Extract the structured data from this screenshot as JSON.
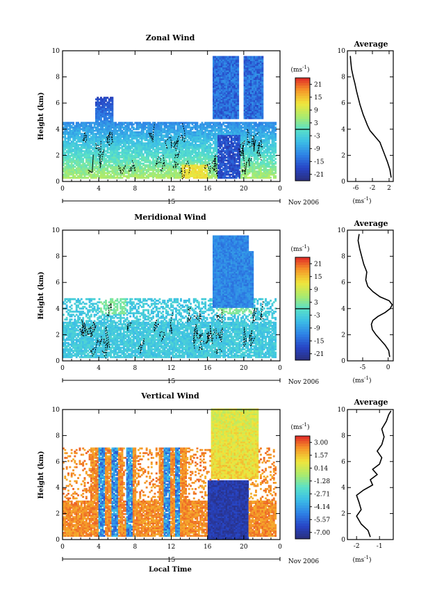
{
  "chart_data": [
    {
      "type": "heatmap",
      "title": "Zonal Wind",
      "ylabel": "Height (km)",
      "xlabel": "",
      "x_ticks": [
        "0",
        "4",
        "8",
        "12",
        "16",
        "20",
        "0"
      ],
      "y_ticks": [
        "0",
        "2",
        "4",
        "6",
        "8",
        "10"
      ],
      "xlim": [
        0,
        24
      ],
      "ylim": [
        0,
        10
      ],
      "date_label": "15",
      "month_label": "Nov 2006",
      "colorbar": {
        "unit": "(ms⁻¹)",
        "ticks": [
          "21",
          "15",
          "9",
          "3",
          "-3",
          "-9",
          "-15",
          "-21"
        ],
        "range": [
          -24,
          24
        ]
      },
      "profile": {
        "title": "Average",
        "x_ticks": [
          "-6",
          "-2",
          "2"
        ],
        "xlim": [
          -8,
          3
        ],
        "y_ticks": [
          "0",
          "2",
          "4",
          "6",
          "8",
          "10"
        ],
        "ylim": [
          0,
          10
        ],
        "xlabel": "(ms⁻¹)",
        "x": [
          2.5,
          2.2,
          1.6,
          1.0,
          0.4,
          -0.2,
          -1.0,
          -1.8,
          -2.6,
          -3.2,
          -3.7,
          -4.2,
          -4.6,
          -5.0,
          -5.4,
          -5.8,
          -6.2,
          -6.6,
          -7.0,
          -7.2,
          -7.3
        ],
        "y": [
          0.3,
          0.9,
          1.5,
          2.0,
          2.5,
          3.0,
          3.3,
          3.6,
          3.9,
          4.3,
          4.7,
          5.1,
          5.5,
          5.9,
          6.4,
          6.9,
          7.5,
          8.0,
          8.6,
          9.2,
          9.6
        ]
      },
      "contours_level": 0
    },
    {
      "type": "heatmap",
      "title": "Meridional Wind",
      "ylabel": "Height (km)",
      "xlabel": "",
      "x_ticks": [
        "0",
        "4",
        "8",
        "12",
        "16",
        "20",
        "0"
      ],
      "y_ticks": [
        "0",
        "2",
        "4",
        "6",
        "8",
        "10"
      ],
      "xlim": [
        0,
        24
      ],
      "ylim": [
        0,
        10
      ],
      "date_label": "15",
      "month_label": "Nov 2006",
      "colorbar": {
        "unit": "(ms⁻¹)",
        "ticks": [
          "21",
          "15",
          "9",
          "3",
          "-3",
          "-9",
          "-15",
          "-21"
        ],
        "range": [
          -24,
          24
        ]
      },
      "profile": {
        "title": "Average",
        "x_ticks": [
          "-5",
          "0"
        ],
        "xlim": [
          -8,
          1
        ],
        "y_ticks": [
          "0",
          "2",
          "4",
          "6",
          "8",
          "10"
        ],
        "ylim": [
          0,
          10
        ],
        "xlabel": "(ms⁻¹)",
        "x": [
          0.3,
          0.1,
          -0.6,
          -1.5,
          -2.4,
          -3.1,
          -3.3,
          -3.0,
          -2.0,
          -0.6,
          0.4,
          0.8,
          0.2,
          -1.6,
          -3.0,
          -4.0,
          -4.4,
          -4.2,
          -4.8,
          -5.2,
          -5.6,
          -5.9,
          -5.7
        ],
        "y": [
          0.3,
          0.8,
          1.2,
          1.6,
          2.0,
          2.4,
          2.8,
          3.1,
          3.4,
          3.7,
          4.0,
          4.3,
          4.6,
          4.9,
          5.3,
          5.7,
          6.2,
          6.8,
          7.4,
          8.0,
          8.6,
          9.2,
          9.7
        ]
      },
      "contours_level": 0
    },
    {
      "type": "heatmap",
      "title": "Vertical Wind",
      "ylabel": "Height (km)",
      "xlabel": "Local Time",
      "x_ticks": [
        "0",
        "4",
        "8",
        "12",
        "16",
        "20",
        "0"
      ],
      "y_ticks": [
        "0",
        "2",
        "4",
        "6",
        "8",
        "10"
      ],
      "xlim": [
        0,
        24
      ],
      "ylim": [
        0,
        10
      ],
      "date_label": "15",
      "month_label": "Nov 2006",
      "colorbar": {
        "unit": "(ms⁻¹)",
        "ticks": [
          "3.00",
          "1.57",
          "0.14",
          "-1.28",
          "-2.71",
          "-4.14",
          "-5.57",
          "-7.00"
        ],
        "range": [
          -7.7,
          3.7
        ]
      },
      "profile": {
        "title": "Average",
        "x_ticks": [
          "-2",
          "-1"
        ],
        "xlim": [
          -2.4,
          -0.4
        ],
        "y_ticks": [
          "0",
          "2",
          "4",
          "6",
          "8",
          "10"
        ],
        "ylim": [
          0,
          10
        ],
        "xlabel": "(ms⁻¹)",
        "x": [
          -1.4,
          -1.5,
          -1.8,
          -2.0,
          -1.8,
          -1.9,
          -2.0,
          -1.7,
          -1.3,
          -1.4,
          -1.1,
          -1.3,
          -1.0,
          -0.9,
          -1.1,
          -0.9,
          -0.8,
          -0.9,
          -0.7,
          -0.6,
          -0.5
        ],
        "y": [
          0.2,
          0.7,
          1.2,
          1.8,
          2.3,
          2.9,
          3.4,
          3.8,
          4.2,
          4.6,
          5.0,
          5.4,
          5.8,
          6.3,
          6.8,
          7.3,
          7.9,
          8.5,
          9.1,
          9.6,
          9.9
        ]
      },
      "contours_level": null
    }
  ]
}
